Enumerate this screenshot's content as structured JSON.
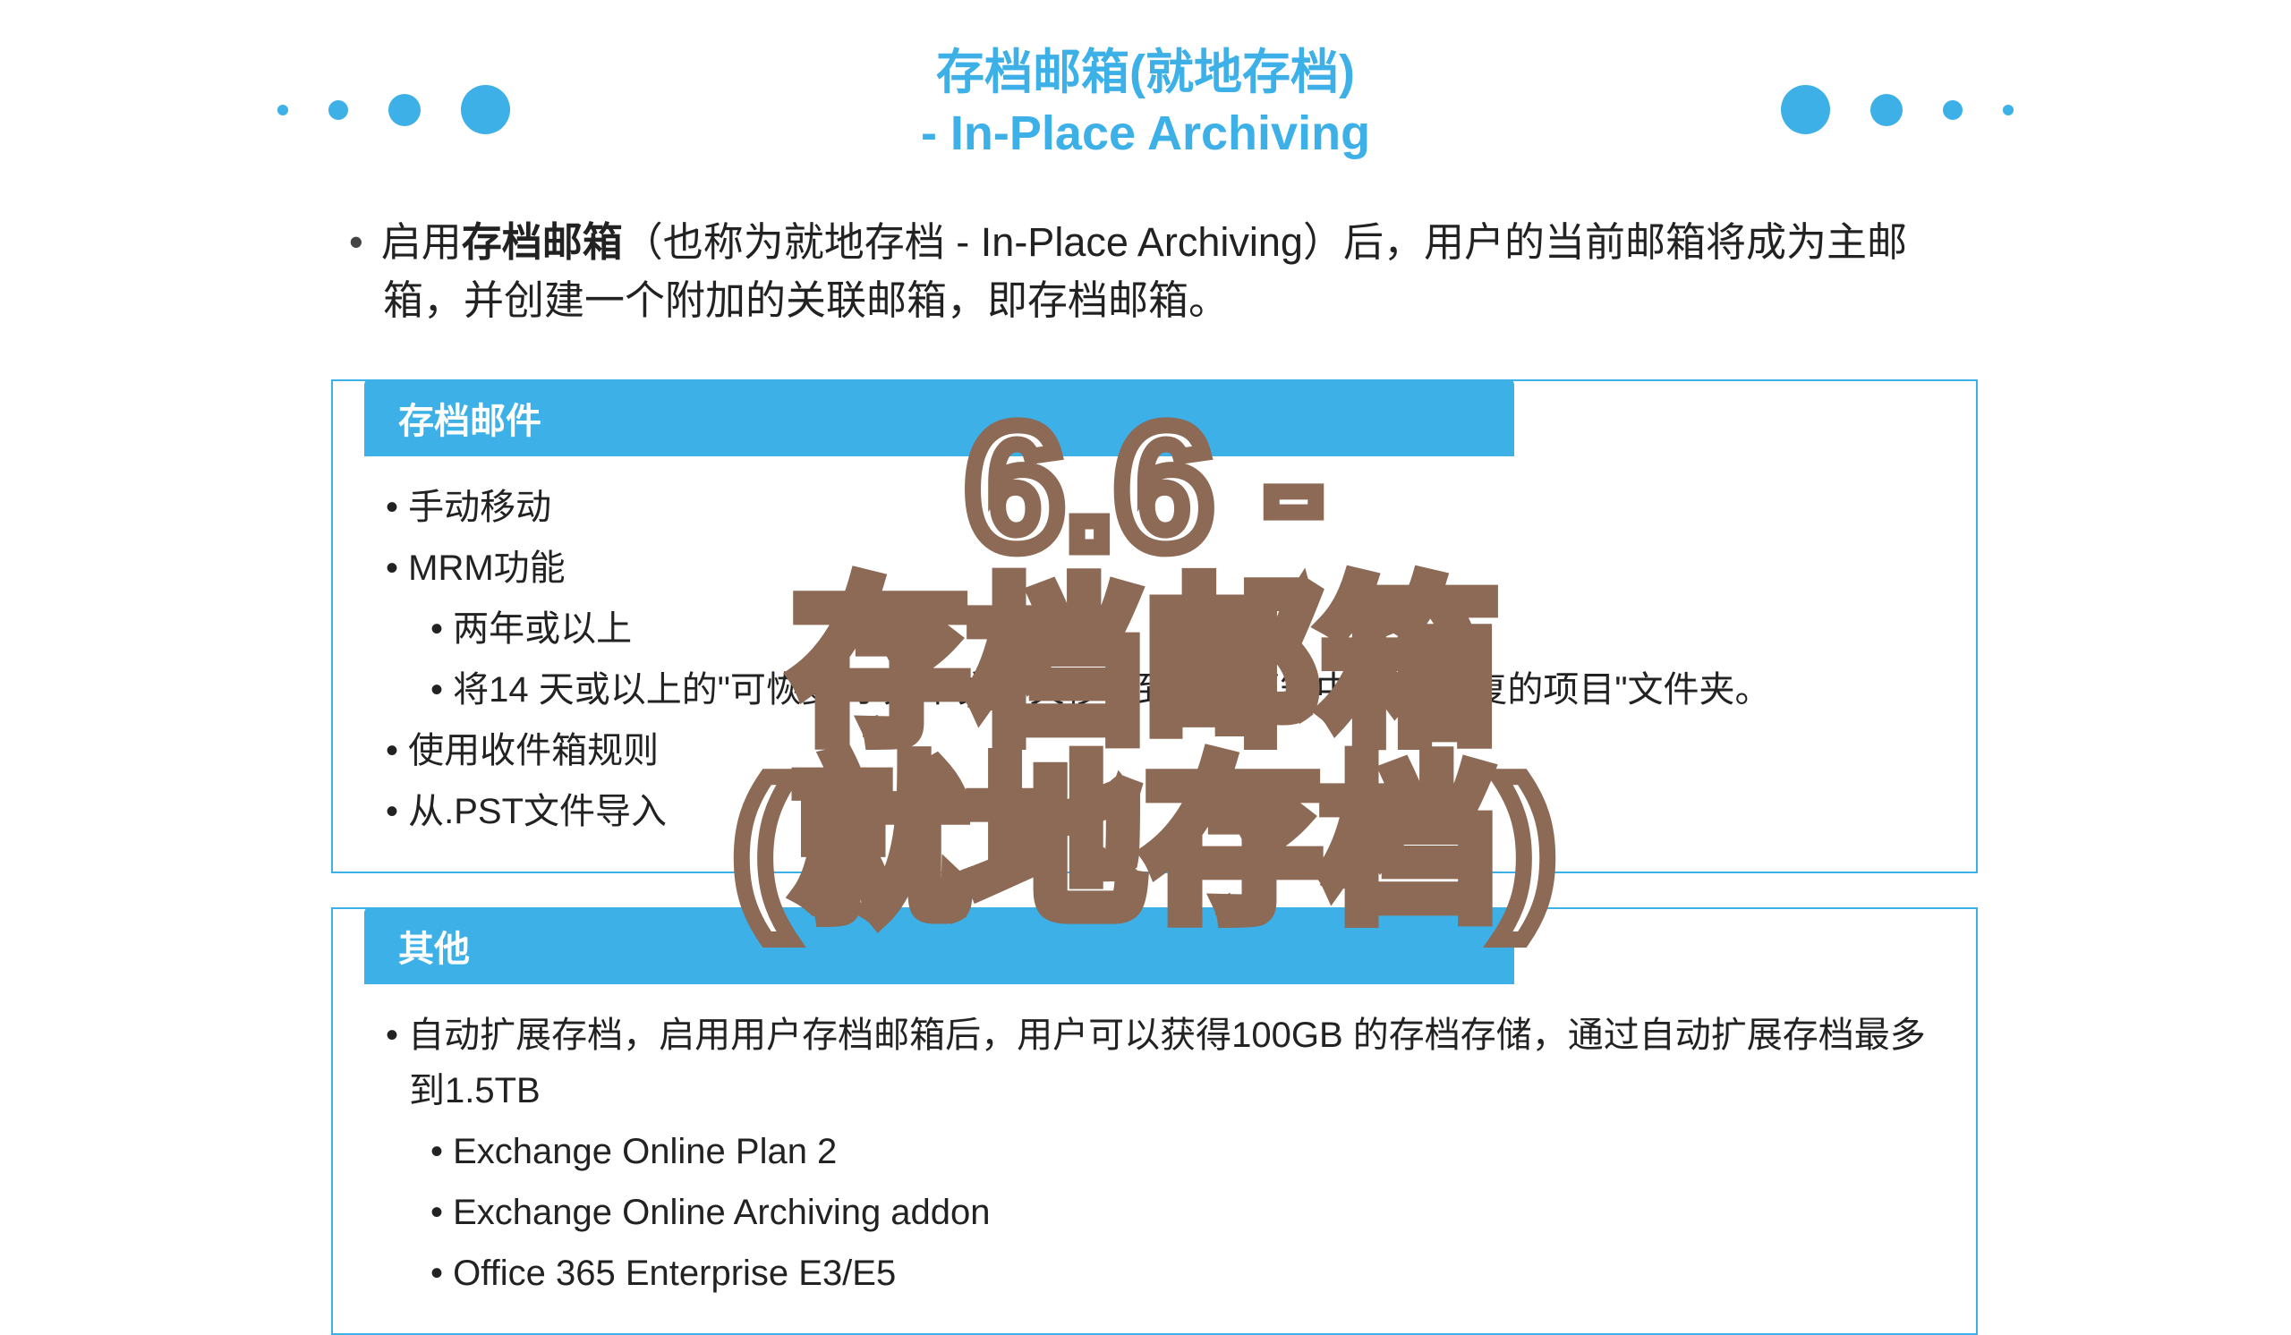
{
  "colors": {
    "accent": "#3db0e8",
    "text": "#222222",
    "overlay_stroke": "#8c6a55",
    "overlay_fill": "#ffffff",
    "background": "#ffffff"
  },
  "title": {
    "line1": "存档邮箱(就地存档)",
    "line2": "- In-Place Archiving"
  },
  "intro": {
    "bullet": "•",
    "prefix": "启用",
    "bold": "存档邮箱",
    "rest": "（也称为就地存档 - In-Place Archiving）后，用户的当前邮箱将成为主邮箱，并创建一个附加的关联邮箱，即存档邮箱。"
  },
  "sections": [
    {
      "header": "存档邮件",
      "items": [
        {
          "level": 1,
          "text": "手动移动"
        },
        {
          "level": 1,
          "text": "MRM功能"
        },
        {
          "level": 2,
          "text": "两年或以上"
        },
        {
          "level": 2,
          "text": "将14 天或以上的\"可恢复的项目\"文件夹移动到存档邮箱中的\"可恢复的项目\"文件夹。"
        },
        {
          "level": 1,
          "text": "使用收件箱规则"
        },
        {
          "level": 1,
          "text": "从.PST文件导入"
        }
      ]
    },
    {
      "header": "其他",
      "items": [
        {
          "level": 1,
          "text": "自动扩展存档，启用用户存档邮箱后，用户可以获得100GB 的存档存储，通过自动扩展存档最多到1.5TB"
        },
        {
          "level": 2,
          "text": "Exchange Online Plan 2"
        },
        {
          "level": 2,
          "text": "Exchange Online Archiving addon"
        },
        {
          "level": 2,
          "text": "Office 365 Enterprise E3/E5"
        }
      ]
    }
  ],
  "overlay": {
    "line1": "6.6 -",
    "line2": "存档邮箱",
    "line3": "(就地存档)"
  }
}
